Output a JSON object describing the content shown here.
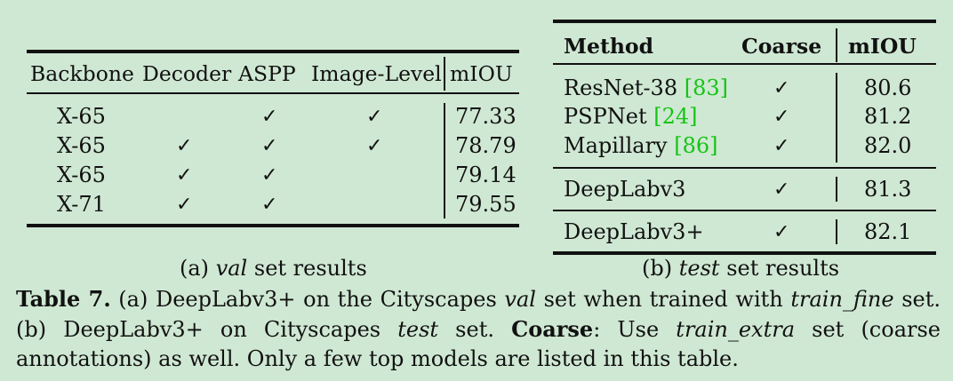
{
  "table_a": {
    "headers": [
      "Backbone",
      "Decoder",
      "ASPP",
      "Image-Level",
      "mIOU"
    ],
    "rows": [
      {
        "backbone": "X-65",
        "decoder": "",
        "aspp": "✓",
        "image_level": "✓",
        "miou": "77.33"
      },
      {
        "backbone": "X-65",
        "decoder": "✓",
        "aspp": "✓",
        "image_level": "✓",
        "miou": "78.79"
      },
      {
        "backbone": "X-65",
        "decoder": "✓",
        "aspp": "✓",
        "image_level": "",
        "miou": "79.14"
      },
      {
        "backbone": "X-71",
        "decoder": "✓",
        "aspp": "✓",
        "image_level": "",
        "miou": "79.55"
      }
    ],
    "caption_label": "(a)",
    "caption_em": "val",
    "caption_rest": "set results"
  },
  "table_b": {
    "headers": [
      "Method",
      "Coarse",
      "mIOU"
    ],
    "rows": [
      {
        "method": "ResNet-38 ",
        "cite": "[83]",
        "coarse": "✓",
        "miou": "80.6"
      },
      {
        "method": "PSPNet ",
        "cite": "[24]",
        "coarse": "✓",
        "miou": "81.2"
      },
      {
        "method": "Mapillary ",
        "cite": "[86]",
        "coarse": "✓",
        "miou": "82.0"
      },
      {
        "method": "DeepLabv3",
        "cite": "",
        "coarse": "✓",
        "miou": "81.3"
      },
      {
        "method": "DeepLabv3+",
        "cite": "",
        "coarse": "✓",
        "miou": "82.1"
      }
    ],
    "caption_label": "(b)",
    "caption_em": "test",
    "caption_rest": "set results"
  },
  "caption": {
    "label": "Table 7.",
    "p1": " (a) DeepLabv3+ on the Cityscapes ",
    "p1_em": "val",
    "p2": " set when trained with ",
    "p2_em": "train_fine",
    "p3": " set. (b) DeepLabv3+ on Cityscapes ",
    "p3_em": "test",
    "p4": " set. ",
    "coarse_bold": "Coarse",
    "p5": ": Use ",
    "p5_em": "train_extra",
    "p6": " set (coarse annotations) as well. Only a few top models are listed in this table."
  }
}
